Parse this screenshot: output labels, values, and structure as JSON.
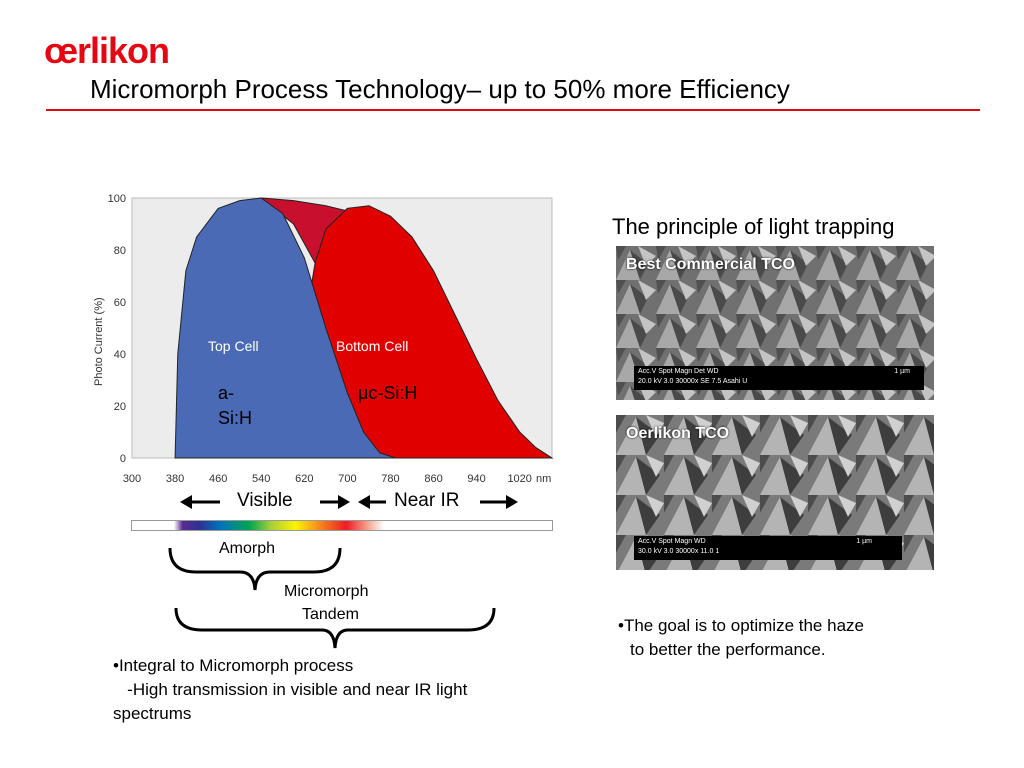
{
  "brand": {
    "logo_text": "œrlikon",
    "accent": "#e30613"
  },
  "slide": {
    "title": "Micromorph Process Technology– up to 50% more Efficiency"
  },
  "chart_data": {
    "type": "area",
    "ylabel": "Photo Current (%)",
    "x_unit": "nm",
    "x_ticks": [
      300,
      380,
      460,
      540,
      620,
      700,
      780,
      860,
      940,
      1020
    ],
    "y_ticks": [
      0,
      20,
      40,
      60,
      80,
      100
    ],
    "xlim": [
      300,
      1080
    ],
    "ylim": [
      0,
      100
    ],
    "series": [
      {
        "name": "Top Cell",
        "color": "#4a6ab5",
        "x": [
          380,
          385,
          400,
          420,
          460,
          500,
          540,
          580,
          620,
          660,
          700,
          730,
          760,
          790
        ],
        "y": [
          0,
          40,
          72,
          85,
          96,
          99,
          100,
          94,
          77,
          50,
          25,
          10,
          2,
          0
        ]
      },
      {
        "name": "Bottom Cell",
        "color": "#e00000",
        "x": [
          620,
          640,
          660,
          700,
          740,
          780,
          820,
          860,
          900,
          940,
          980,
          1020,
          1050,
          1080
        ],
        "y": [
          50,
          75,
          88,
          96,
          97,
          93,
          85,
          72,
          55,
          38,
          22,
          10,
          4,
          0
        ]
      },
      {
        "name": "",
        "color": "#c8102e",
        "x": [
          540,
          600,
          660,
          700,
          720
        ],
        "y": [
          100,
          99,
          97,
          95,
          94
        ]
      }
    ],
    "labels": {
      "top_cell": "Top Cell",
      "bottom_cell": "Bottom Cell",
      "top_material": "a-Si:H",
      "top_material_l1": "a-",
      "top_material_l2": "Si:H",
      "bottom_material": "μc-Si:H"
    }
  },
  "spectrum": {
    "visible": "Visible",
    "near_ir": "Near IR"
  },
  "braces": {
    "amorph": "Amorph",
    "micromorph_l1": "Micromorph",
    "micromorph_l2": "Tandem"
  },
  "left_bullets": {
    "line1": "•Integral to Micromorph process",
    "line2": "   -High transmission in visible and near IR light",
    "line3": "spectrums"
  },
  "right": {
    "heading": "The principle of light trapping",
    "photo1": {
      "label": "Best Commercial TCO",
      "scale_line1": "Acc.V   Spot Magn    Det   WD",
      "scale_line2": "20.0 kV 3.0   30000x   SE   7.5    Asahi U",
      "scale_unit": "1 µm"
    },
    "photo2": {
      "label": "Oerlikon TCO",
      "scale_line1": "Acc.V   Spot Magn    WD",
      "scale_line2": "30.0 kV 3.0   30000x   11.0  1",
      "scale_unit": "1 µm"
    },
    "bullet_l1": "•The goal is to optimize the haze",
    "bullet_l2": "to better the performance."
  }
}
